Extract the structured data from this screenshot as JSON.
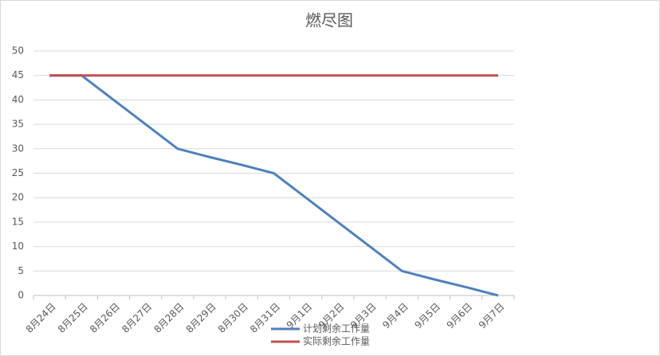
{
  "chart_data": {
    "type": "line",
    "title": "燃尽图",
    "categories": [
      "8月24日",
      "8月25日",
      "8月26日",
      "8月27日",
      "8月28日",
      "8月29日",
      "8月30日",
      "8月31日",
      "9月1日",
      "9月2日",
      "9月3日",
      "9月4日",
      "9月5日",
      "9月6日",
      "9月7日"
    ],
    "series": [
      {
        "name": "计划剩余工作量",
        "color": "#4f81bd",
        "values": [
          45,
          45,
          40,
          35,
          30,
          28.3,
          26.7,
          25,
          20,
          15,
          10,
          5,
          3.3,
          1.7,
          0
        ]
      },
      {
        "name": "实际剩余工作量",
        "color": "#c0504d",
        "values": [
          45,
          45,
          45,
          45,
          45,
          45,
          45,
          45,
          45,
          45,
          45,
          45,
          45,
          45,
          45
        ]
      }
    ],
    "ylim": [
      0,
      50
    ],
    "yticks": [
      0,
      5,
      10,
      15,
      20,
      25,
      30,
      35,
      40,
      45,
      50
    ],
    "grid": true,
    "legend": "bottom"
  }
}
